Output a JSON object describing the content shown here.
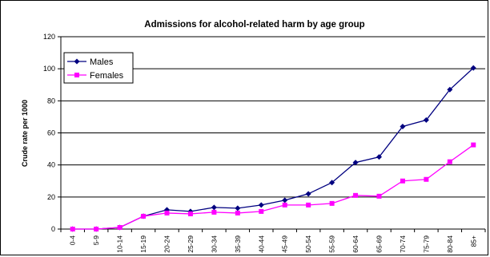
{
  "chart_data": {
    "type": "line",
    "title": "Admissions for alcohol-related harm by age group",
    "xlabel": "",
    "ylabel": "Crude rate per 1000",
    "ylim": [
      0,
      120
    ],
    "yticks": [
      0,
      20,
      40,
      60,
      80,
      100,
      120
    ],
    "grid": true,
    "legend_position": "top-left",
    "categories": [
      "0-4",
      "5-9",
      "10-14",
      "15-19",
      "20-24",
      "25-29",
      "30-34",
      "35-39",
      "40-44",
      "45-49",
      "50-54",
      "55-59",
      "60-64",
      "65-69",
      "70-74",
      "75-79",
      "80-84",
      "85+"
    ],
    "series": [
      {
        "name": "Males",
        "color": "#000080",
        "marker": "diamond",
        "values": [
          0,
          0,
          1,
          8,
          12,
          11,
          13.5,
          13,
          15,
          18,
          22,
          29,
          41.5,
          45,
          64,
          68,
          87,
          100.5
        ]
      },
      {
        "name": "Females",
        "color": "#FF00FF",
        "marker": "square",
        "values": [
          0,
          0,
          1,
          8,
          10,
          9.5,
          10.5,
          10,
          11,
          15,
          15,
          16,
          21,
          20.5,
          30,
          31,
          42,
          52.5
        ]
      }
    ]
  }
}
